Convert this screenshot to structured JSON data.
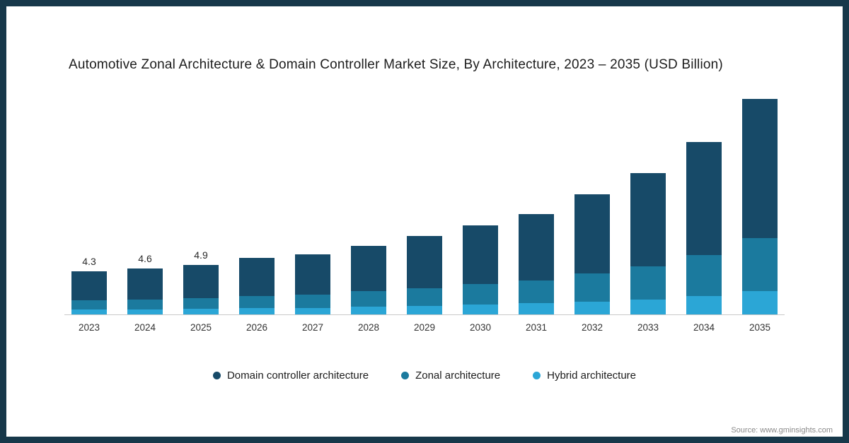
{
  "title": "Automotive Zonal Architecture & Domain Controller Market Size, By Architecture, 2023 – 2035 (USD Billion)",
  "source": "Source: www.gminsights.com",
  "colors": {
    "frame": "#17384A",
    "domain_controller": "#174A68",
    "zonal": "#1B7A9E",
    "hybrid": "#2BA6D6",
    "axis_line": "#c9c9c9"
  },
  "chart_data": {
    "type": "bar",
    "stacked": true,
    "title": "Automotive Zonal Architecture & Domain Controller Market Size, By Architecture, 2023 – 2035 (USD Billion)",
    "xlabel": "",
    "ylabel": "USD Billion",
    "ylim": [
      0,
      22
    ],
    "grid": false,
    "legend_position": "bottom",
    "categories": [
      "2023",
      "2024",
      "2025",
      "2026",
      "2027",
      "2028",
      "2029",
      "2030",
      "2031",
      "2032",
      "2033",
      "2034",
      "2035"
    ],
    "value_labels": [
      "4.3",
      "4.6",
      "4.9",
      "",
      "",
      "",
      "",
      "",
      "",
      "",
      "",
      "",
      ""
    ],
    "totals": [
      4.3,
      4.6,
      4.9,
      5.6,
      6.0,
      6.8,
      7.8,
      8.9,
      10.0,
      12.0,
      14.1,
      17.2,
      21.5
    ],
    "series": [
      {
        "name": "Domain controller architecture",
        "color": "#174A68",
        "stack_position": "top",
        "values": [
          2.9,
          3.1,
          3.3,
          3.75,
          4.0,
          4.5,
          5.2,
          5.9,
          6.6,
          7.9,
          9.3,
          11.3,
          13.9
        ]
      },
      {
        "name": "Zonal architecture",
        "color": "#1B7A9E",
        "stack_position": "middle",
        "values": [
          0.9,
          1.0,
          1.05,
          1.25,
          1.35,
          1.55,
          1.75,
          2.0,
          2.3,
          2.8,
          3.3,
          4.1,
          5.3
        ]
      },
      {
        "name": "Hybrid architecture",
        "color": "#2BA6D6",
        "stack_position": "bottom",
        "values": [
          0.5,
          0.5,
          0.55,
          0.6,
          0.65,
          0.75,
          0.85,
          1.0,
          1.1,
          1.3,
          1.5,
          1.8,
          2.3
        ]
      }
    ]
  }
}
